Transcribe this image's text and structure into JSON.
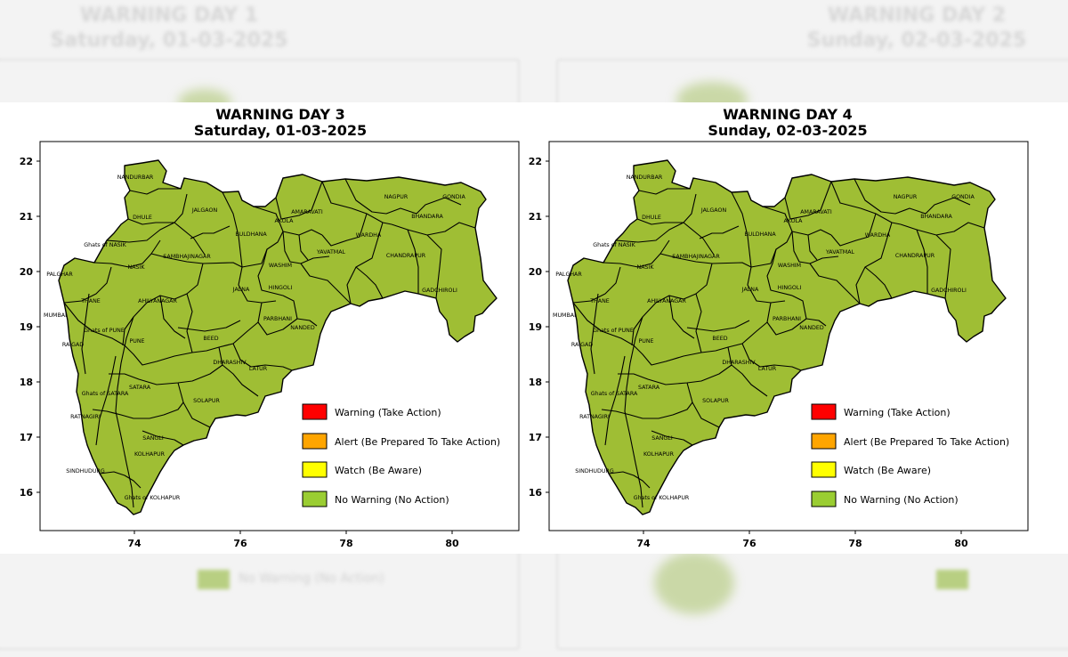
{
  "panels": [
    {
      "title": "WARNING DAY 3",
      "subtitle": "Saturday, 01-03-2025",
      "mumbai_label": "MUMBAI",
      "districts": [
        "NANDURBAR",
        "DHULE",
        "JALGAON",
        "Ghats of NASIK",
        "NASIK",
        "PALGHAR",
        "THANE",
        "AHILYANAGAR",
        "SAMBHAJINAGAR",
        "BULDHANA",
        "AKOLA",
        "AMARAVATI",
        "NAGPUR",
        "GONDIA",
        "BHANDARA",
        "WARDHA",
        "YAVATMAL",
        "CHANDRAPUR",
        "GADCHIROLI",
        "WASHIM",
        "HINGOLI",
        "JALNA",
        "PARBHANI",
        "NANDED",
        "BEED",
        "Ghats of PUNE",
        "PUNE",
        "RAIGAD",
        "DHARASHIV",
        "LATUR",
        "SATARA",
        "Ghats of SATARA",
        "SOLAPUR",
        "RATNAGIRI",
        "SANGLI",
        "KOLHAPUR",
        "SINDHUDURG",
        "Ghats of KOLHAPUR"
      ],
      "x_ticks": [
        "74",
        "76",
        "78",
        "80"
      ],
      "y_ticks": [
        "22",
        "21",
        "20",
        "19",
        "18",
        "17",
        "16"
      ]
    },
    {
      "title": "WARNING DAY 4",
      "subtitle": "Sunday, 02-03-2025",
      "mumbai_label": "MUMBAI",
      "districts": [
        "NANDURBAR",
        "DHULE",
        "JALGAON",
        "Ghats of NASIK",
        "NASIK",
        "PALGHAR",
        "THANE",
        "AHILYANAGAR",
        "SAMBHAJINAGAR",
        "BULDHANA",
        "AKOLA",
        "AMARAVATI",
        "NAGPUR",
        "GONDIA",
        "BHANDARA",
        "WARDHA",
        "YAVATMAL",
        "CHANDRAPUR",
        "GADCHIROLI",
        "WASHIM",
        "HINGOLI",
        "JALNA",
        "PARBHANI",
        "NANDED",
        "BEED",
        "Ghats of PUNE",
        "PUNE",
        "RAIGAD",
        "DHARASHIV",
        "LATUR",
        "SATARA",
        "Ghats of SATARA",
        "SOLAPUR",
        "RATNAGIRI",
        "SANGLI",
        "KOLHAPUR",
        "SINDHUDURG",
        "Ghats of KOLHAPUR"
      ],
      "x_ticks": [
        "74",
        "76",
        "78",
        "80"
      ],
      "y_ticks": [
        "22",
        "21",
        "20",
        "19",
        "18",
        "17",
        "16"
      ]
    }
  ],
  "legend": [
    {
      "label": "Warning (Take Action)",
      "color": "#ff0000"
    },
    {
      "label": "Alert (Be Prepared To Take Action)",
      "color": "#ffa500"
    },
    {
      "label": "Watch (Be Aware)",
      "color": "#ffff00"
    },
    {
      "label": "No Warning (No Action)",
      "color": "#9acd32"
    }
  ],
  "background": {
    "ghost_title_left": "WARNING DAY 1\nSaturday, 01-03-2025",
    "ghost_title_right": "WARNING DAY 2\nSunday, 02-03-2025",
    "ghost_legend_text": "No Warning (No Action)"
  },
  "colors": {
    "map_fill": "#9fbe34",
    "border": "#000000"
  }
}
